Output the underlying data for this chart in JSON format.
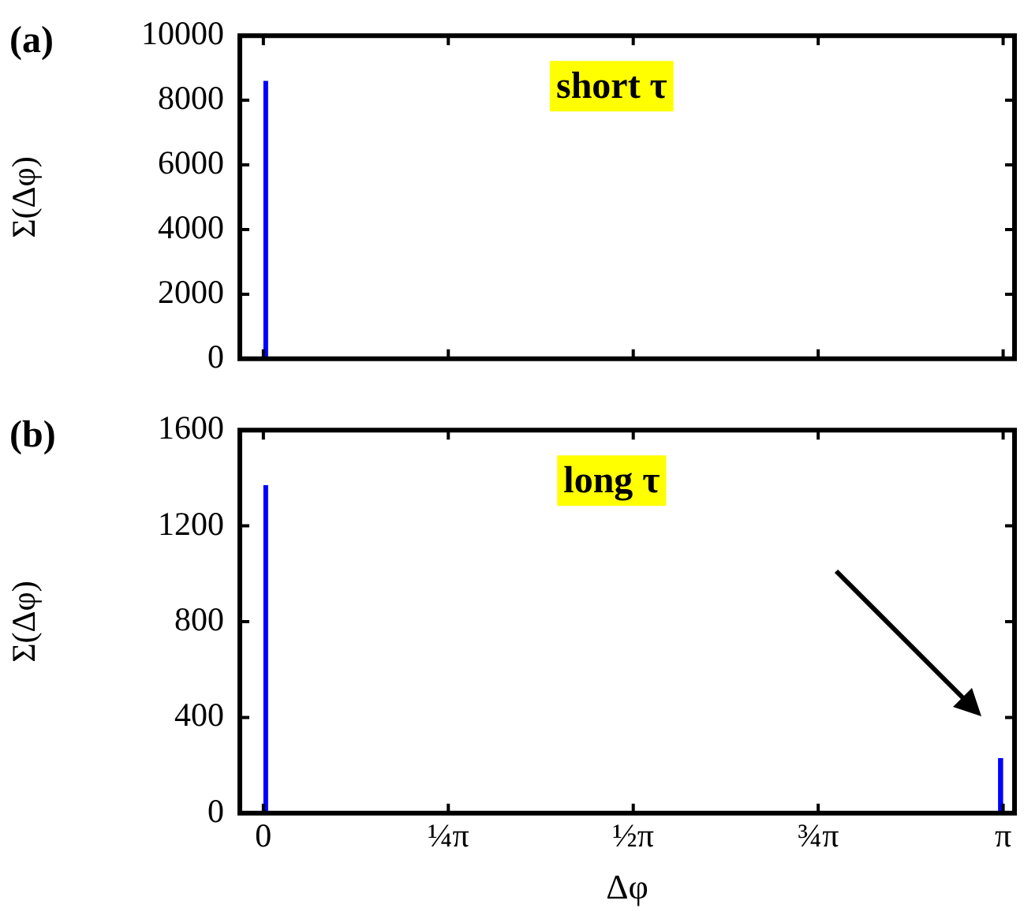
{
  "chart_data": [
    {
      "type": "histogram",
      "ylabel": "Σ(Δφ)",
      "annotations": [
        "(a)",
        "short τ"
      ],
      "bins": [
        0,
        0.02,
        3.1416
      ],
      "values": [
        8600,
        20
      ],
      "color": "#0000ff",
      "xlim": [
        -0.1,
        3.19
      ],
      "xticks": [
        {
          "value": 0,
          "label": null
        },
        {
          "value": 0.7854,
          "label": null
        },
        {
          "value": 1.5708,
          "label": null
        },
        {
          "value": 2.3562,
          "label": null
        },
        {
          "value": 3.1416,
          "label": null
        }
      ],
      "ylim": [
        0,
        10000
      ],
      "yticks": [
        0,
        2000,
        4000,
        6000,
        8000,
        10000
      ],
      "tick_labels": "y"
    },
    {
      "type": "histogram",
      "xlabel": "Δφ",
      "ylabel": "Σ(Δφ)",
      "annotations": [
        "(b)",
        "long τ"
      ],
      "bins": [
        0,
        0.02,
        3.12,
        3.1416
      ],
      "values": [
        1370,
        5,
        230
      ],
      "color": "#0000ff",
      "xlim": [
        -0.1,
        3.19
      ],
      "xticks": [
        0,
        {
          "value": 0.7854,
          "label": "¼π"
        },
        {
          "value": 1.5708,
          "label": "½π"
        },
        {
          "value": 2.3562,
          "label": "¾π"
        },
        {
          "value": 3.1416,
          "label": "π"
        }
      ],
      "ylim": [
        0,
        1600
      ],
      "yticks": [
        0,
        400,
        800,
        1200,
        1600
      ]
    }
  ]
}
